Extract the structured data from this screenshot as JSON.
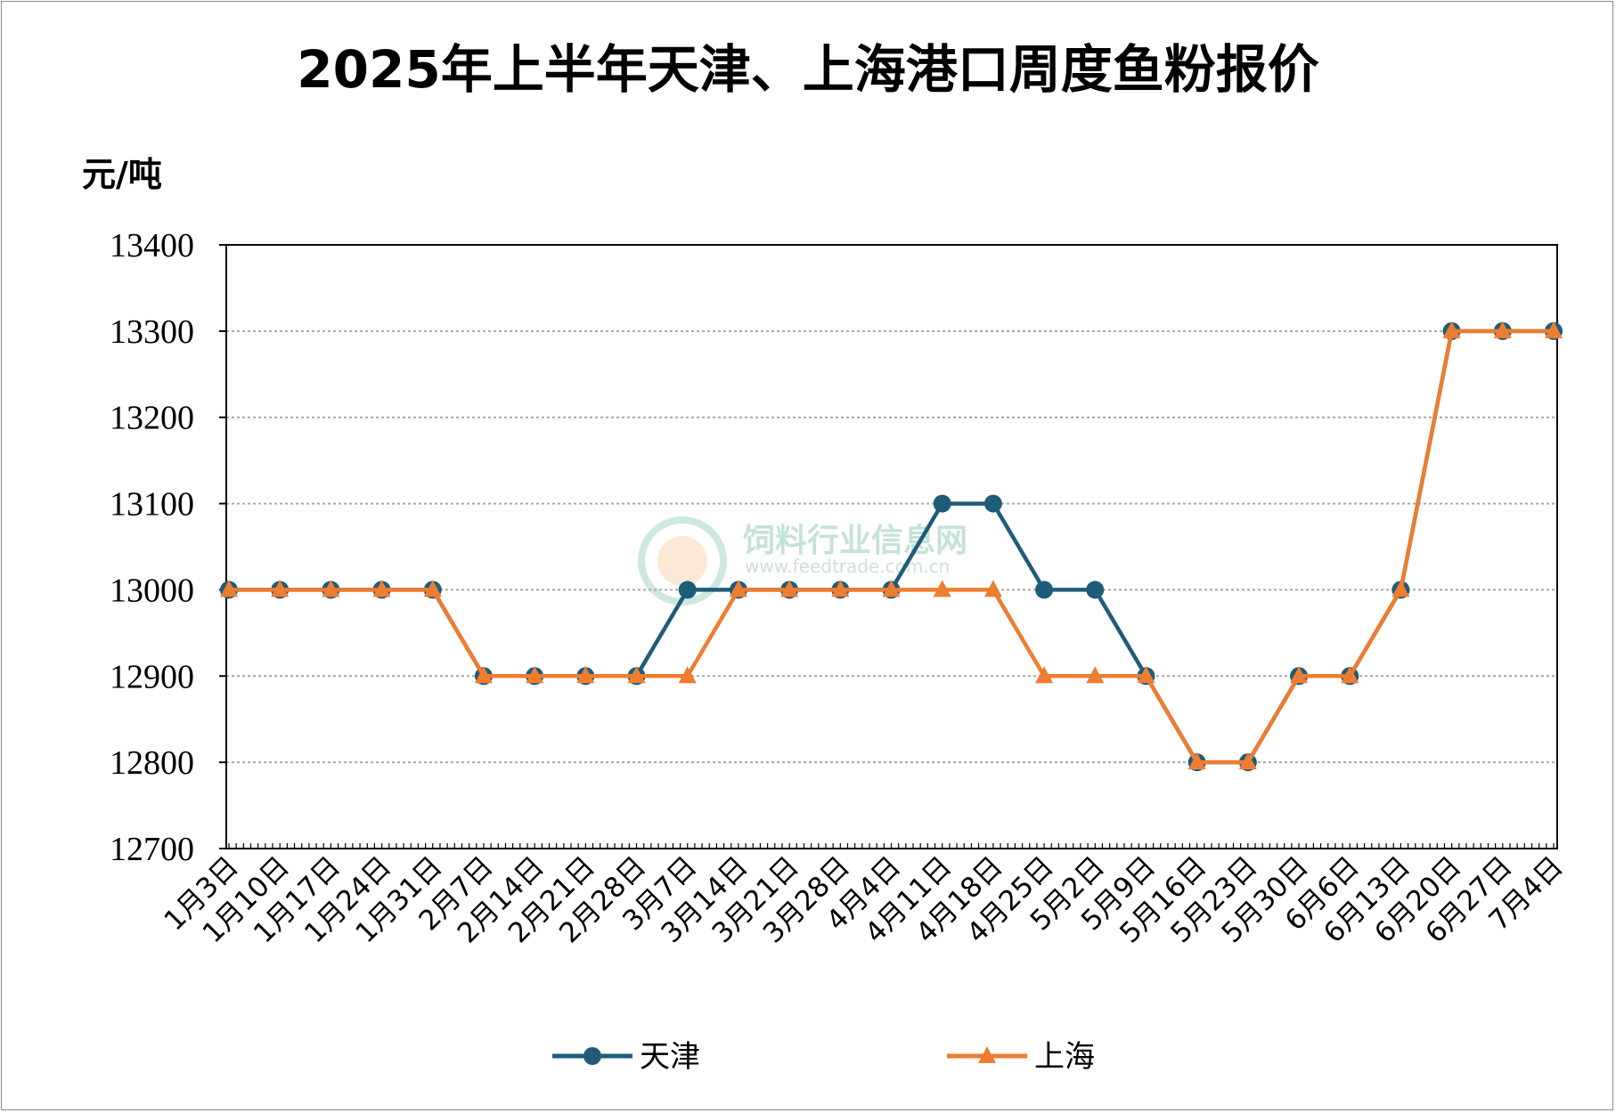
{
  "chart_data": {
    "type": "line",
    "title": "2025年上半年天津、上海港口周度鱼粉报价",
    "ylabel": "元/吨",
    "xlabel": "",
    "ylim": [
      12700,
      13400
    ],
    "yticks": [
      "13400",
      "13300",
      "13200",
      "13100",
      "13000",
      "12900",
      "12800",
      "12700"
    ],
    "grid": "horizontal dotted",
    "legend_position": "bottom",
    "categories": [
      "1月3日",
      "1月10日",
      "1月17日",
      "1月24日",
      "1月31日",
      "2月7日",
      "2月14日",
      "2月21日",
      "2月28日",
      "3月7日",
      "3月14日",
      "3月21日",
      "3月28日",
      "4月4日",
      "4月11日",
      "4月18日",
      "4月25日",
      "5月2日",
      "5月9日",
      "5月16日",
      "5月23日",
      "5月30日",
      "6月6日",
      "6月13日",
      "6月20日",
      "6月27日",
      "7月4日"
    ],
    "series": [
      {
        "name": "天津",
        "color": "#1f5c7a",
        "marker": "circle",
        "values": [
          13000,
          13000,
          13000,
          13000,
          13000,
          12900,
          12900,
          12900,
          12900,
          13000,
          13000,
          13000,
          13000,
          13000,
          13100,
          13100,
          13000,
          13000,
          12900,
          12800,
          12800,
          12900,
          12900,
          13000,
          13300,
          13300,
          13300
        ]
      },
      {
        "name": "上海",
        "color": "#ed7d31",
        "marker": "triangle",
        "values": [
          13000,
          13000,
          13000,
          13000,
          13000,
          12900,
          12900,
          12900,
          12900,
          12900,
          13000,
          13000,
          13000,
          13000,
          13000,
          13000,
          12900,
          12900,
          12900,
          12800,
          12800,
          12900,
          12900,
          13000,
          13300,
          13300,
          13300
        ]
      }
    ]
  },
  "watermark": {
    "title": "饲料行业信息网",
    "url": "www.feedtrade.com.cn"
  }
}
